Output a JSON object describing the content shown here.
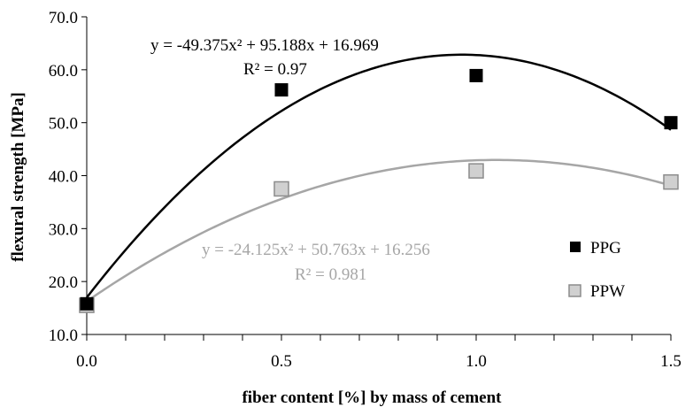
{
  "chart_data": {
    "type": "scatter",
    "xlabel": "fiber content [%] by mass of cement",
    "ylabel": "flexural strength [MPa]",
    "xlim": [
      0.0,
      1.5
    ],
    "ylim": [
      10.0,
      70.0
    ],
    "x_ticks": [
      "0.0",
      "0.5",
      "1.0",
      "1.5"
    ],
    "y_ticks": [
      "10.0",
      "20.0",
      "30.0",
      "40.0",
      "50.0",
      "60.0",
      "70.0"
    ],
    "grid": false,
    "legend_position": "right",
    "series": [
      {
        "name": "PPG",
        "x": [
          0.0,
          0.5,
          1.0,
          1.5
        ],
        "y": [
          15.8,
          56.2,
          58.9,
          50.0
        ],
        "marker": "square",
        "marker_color": "#000000",
        "trendline": {
          "type": "polynomial",
          "coefficients": [
            -49.375,
            95.188,
            16.969
          ],
          "color": "#000000",
          "equation": "y = -49.375x² + 95.188x + 16.969",
          "r2": "R² = 0.97"
        }
      },
      {
        "name": "PPW",
        "x": [
          0.0,
          0.5,
          1.0,
          1.5
        ],
        "y": [
          15.5,
          37.5,
          40.9,
          38.8
        ],
        "marker": "square",
        "marker_color": "#d0d0d0",
        "trendline": {
          "type": "polynomial",
          "coefficients": [
            -24.125,
            50.763,
            16.256
          ],
          "color": "#a6a6a6",
          "equation": "y = -24.125x² + 50.763x + 16.256",
          "r2": "R² = 0.981"
        }
      }
    ]
  }
}
